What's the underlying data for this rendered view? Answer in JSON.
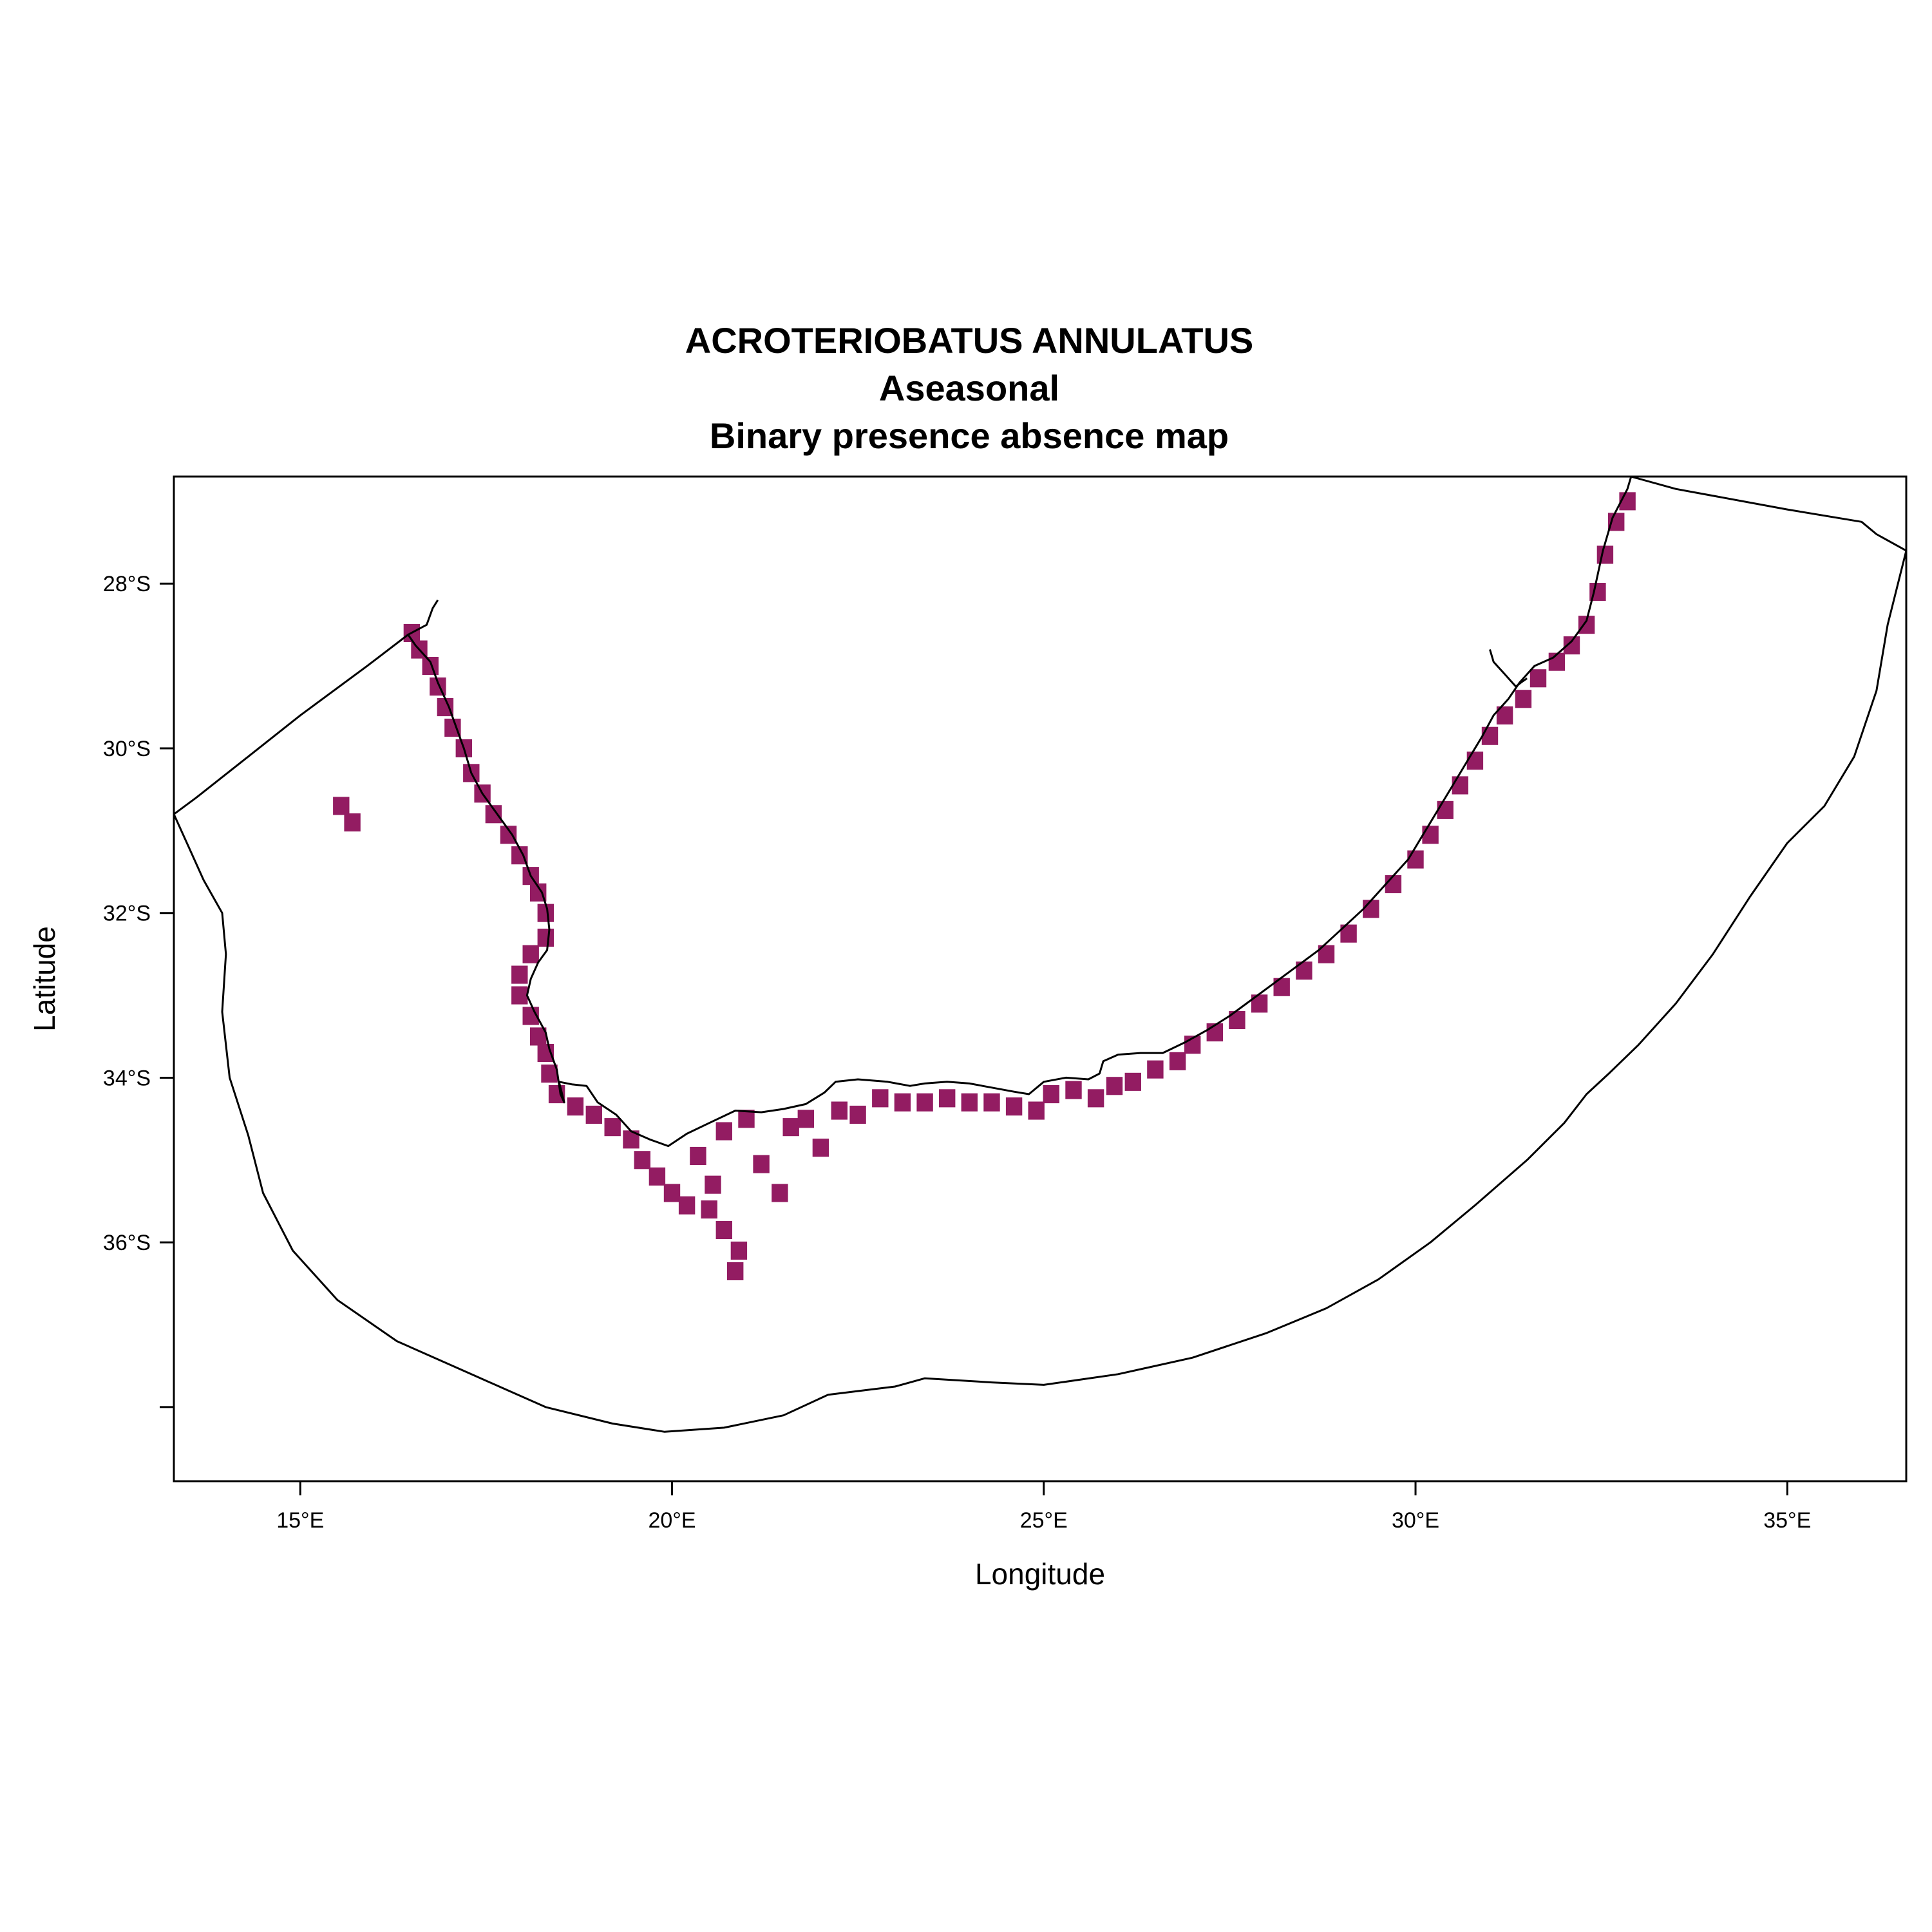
{
  "map": {
    "title_lines": [
      "ACROTERIOBATUS ANNULATUS",
      "Aseasonal",
      "Binary presence absence map"
    ],
    "xlabel": "Longitude",
    "ylabel": "Latitude",
    "x_range": [
      13.3,
      36.6
    ],
    "y_range": [
      -38.9,
      -26.7
    ],
    "x_ticks": [
      {
        "value": 15,
        "label": "15°E"
      },
      {
        "value": 20,
        "label": "20°E"
      },
      {
        "value": 25,
        "label": "25°E"
      },
      {
        "value": 30,
        "label": "30°E"
      },
      {
        "value": 35,
        "label": "35°E"
      }
    ],
    "y_ticks": [
      {
        "value": -28,
        "label": "28°S"
      },
      {
        "value": -30,
        "label": "30°S"
      },
      {
        "value": -32,
        "label": "32°S"
      },
      {
        "value": -34,
        "label": "34°S"
      },
      {
        "value": -36,
        "label": "36°S"
      },
      {
        "value": -38,
        "label": ""
      }
    ],
    "presence_color": "#931c62",
    "line_color": "#000000",
    "coastline": [
      [
        16.85,
        -28.2
      ],
      [
        16.78,
        -28.3
      ],
      [
        16.7,
        -28.5
      ],
      [
        16.45,
        -28.62
      ],
      [
        16.55,
        -28.75
      ],
      [
        16.75,
        -28.95
      ],
      [
        16.85,
        -29.2
      ],
      [
        17.0,
        -29.5
      ],
      [
        17.1,
        -29.75
      ],
      [
        17.2,
        -30.0
      ],
      [
        17.3,
        -30.3
      ],
      [
        17.45,
        -30.55
      ],
      [
        17.65,
        -30.8
      ],
      [
        17.85,
        -31.05
      ],
      [
        18.0,
        -31.3
      ],
      [
        18.1,
        -31.55
      ],
      [
        18.25,
        -31.75
      ],
      [
        18.32,
        -31.95
      ],
      [
        18.35,
        -32.2
      ],
      [
        18.32,
        -32.45
      ],
      [
        18.2,
        -32.6
      ],
      [
        18.1,
        -32.8
      ],
      [
        18.05,
        -33.0
      ],
      [
        18.15,
        -33.2
      ],
      [
        18.3,
        -33.45
      ],
      [
        18.35,
        -33.65
      ],
      [
        18.45,
        -33.9
      ],
      [
        18.5,
        -34.2
      ],
      [
        18.55,
        -34.3
      ],
      [
        18.48,
        -34.05
      ],
      [
        18.65,
        -34.08
      ],
      [
        18.85,
        -34.1
      ],
      [
        19.0,
        -34.3
      ],
      [
        19.25,
        -34.45
      ],
      [
        19.45,
        -34.65
      ],
      [
        19.7,
        -34.75
      ],
      [
        19.95,
        -34.83
      ],
      [
        20.2,
        -34.68
      ],
      [
        20.5,
        -34.55
      ],
      [
        20.85,
        -34.4
      ],
      [
        21.2,
        -34.42
      ],
      [
        21.5,
        -34.38
      ],
      [
        21.8,
        -34.32
      ],
      [
        22.05,
        -34.18
      ],
      [
        22.2,
        -34.05
      ],
      [
        22.5,
        -34.02
      ],
      [
        22.9,
        -34.05
      ],
      [
        23.2,
        -34.1
      ],
      [
        23.4,
        -34.07
      ],
      [
        23.7,
        -34.05
      ],
      [
        24.0,
        -34.07
      ],
      [
        24.3,
        -34.12
      ],
      [
        24.6,
        -34.17
      ],
      [
        24.8,
        -34.2
      ],
      [
        25.0,
        -34.05
      ],
      [
        25.3,
        -34.0
      ],
      [
        25.6,
        -34.02
      ],
      [
        25.75,
        -33.95
      ],
      [
        25.8,
        -33.8
      ],
      [
        26.0,
        -33.72
      ],
      [
        26.3,
        -33.7
      ],
      [
        26.6,
        -33.7
      ],
      [
        26.9,
        -33.57
      ],
      [
        27.2,
        -33.42
      ],
      [
        27.5,
        -33.25
      ],
      [
        27.8,
        -33.05
      ],
      [
        28.1,
        -32.85
      ],
      [
        28.4,
        -32.65
      ],
      [
        28.7,
        -32.45
      ],
      [
        29.0,
        -32.2
      ],
      [
        29.3,
        -31.95
      ],
      [
        29.6,
        -31.65
      ],
      [
        29.9,
        -31.35
      ],
      [
        30.1,
        -31.05
      ],
      [
        30.3,
        -30.75
      ],
      [
        30.5,
        -30.45
      ],
      [
        30.7,
        -30.15
      ],
      [
        30.9,
        -29.85
      ],
      [
        31.05,
        -29.6
      ],
      [
        31.25,
        -29.4
      ],
      [
        31.4,
        -29.2
      ],
      [
        31.6,
        -29.0
      ],
      [
        31.85,
        -28.9
      ],
      [
        32.1,
        -28.7
      ],
      [
        32.3,
        -28.45
      ],
      [
        32.4,
        -28.1
      ],
      [
        32.52,
        -27.6
      ],
      [
        32.65,
        -27.2
      ],
      [
        32.85,
        -26.85
      ],
      [
        32.9,
        -26.7
      ]
    ],
    "bay_inlet": [
      [
        31.0,
        -28.8
      ],
      [
        31.05,
        -28.95
      ],
      [
        31.15,
        -29.05
      ],
      [
        31.2,
        -29.1
      ],
      [
        31.25,
        -29.15
      ],
      [
        31.3,
        -29.2
      ],
      [
        31.35,
        -29.25
      ],
      [
        31.42,
        -29.2
      ],
      [
        31.5,
        -29.15
      ]
    ],
    "eez_boundary": [
      [
        16.45,
        -28.62
      ],
      [
        15.9,
        -29.0
      ],
      [
        15.0,
        -29.6
      ],
      [
        14.3,
        -30.1
      ],
      [
        13.6,
        -30.6
      ],
      [
        13.3,
        -30.8
      ],
      [
        13.5,
        -31.2
      ],
      [
        13.7,
        -31.6
      ],
      [
        13.95,
        -32.0
      ],
      [
        14.0,
        -32.5
      ],
      [
        13.95,
        -33.2
      ],
      [
        14.05,
        -34.0
      ],
      [
        14.3,
        -34.7
      ],
      [
        14.5,
        -35.4
      ],
      [
        14.9,
        -36.1
      ],
      [
        15.5,
        -36.7
      ],
      [
        16.3,
        -37.2
      ],
      [
        17.3,
        -37.6
      ],
      [
        18.3,
        -38.0
      ],
      [
        19.2,
        -38.2
      ],
      [
        19.9,
        -38.3
      ],
      [
        20.7,
        -38.25
      ],
      [
        21.5,
        -38.1
      ],
      [
        22.1,
        -37.85
      ],
      [
        23.0,
        -37.75
      ],
      [
        23.4,
        -37.65
      ],
      [
        24.3,
        -37.7
      ],
      [
        25.0,
        -37.73
      ],
      [
        26.0,
        -37.6
      ],
      [
        27.0,
        -37.4
      ],
      [
        28.0,
        -37.1
      ],
      [
        28.8,
        -36.8
      ],
      [
        29.5,
        -36.45
      ],
      [
        30.2,
        -36.0
      ],
      [
        30.8,
        -35.55
      ],
      [
        31.5,
        -35.0
      ],
      [
        32.0,
        -34.55
      ],
      [
        32.3,
        -34.2
      ],
      [
        32.6,
        -33.95
      ],
      [
        33.0,
        -33.6
      ],
      [
        33.5,
        -33.1
      ],
      [
        34.0,
        -32.5
      ],
      [
        34.5,
        -31.8
      ],
      [
        35.0,
        -31.15
      ],
      [
        35.5,
        -30.7
      ],
      [
        35.9,
        -30.1
      ],
      [
        36.2,
        -29.3
      ],
      [
        36.35,
        -28.5
      ],
      [
        36.6,
        -27.6
      ],
      [
        36.2,
        -27.4
      ],
      [
        36.0,
        -27.25
      ],
      [
        35.0,
        -27.1
      ],
      [
        33.5,
        -26.85
      ],
      [
        32.9,
        -26.7
      ]
    ],
    "presence_cells": [
      [
        16.5,
        -28.6
      ],
      [
        16.6,
        -28.8
      ],
      [
        16.75,
        -29.0
      ],
      [
        16.85,
        -29.25
      ],
      [
        16.95,
        -29.5
      ],
      [
        17.05,
        -29.75
      ],
      [
        17.2,
        -30.0
      ],
      [
        17.3,
        -30.3
      ],
      [
        17.45,
        -30.55
      ],
      [
        17.6,
        -30.8
      ],
      [
        17.8,
        -31.05
      ],
      [
        17.95,
        -31.3
      ],
      [
        18.1,
        -31.55
      ],
      [
        18.2,
        -31.75
      ],
      [
        18.3,
        -32.0
      ],
      [
        18.3,
        -32.3
      ],
      [
        18.1,
        -32.5
      ],
      [
        17.95,
        -32.75
      ],
      [
        17.95,
        -33.0
      ],
      [
        18.1,
        -33.25
      ],
      [
        18.2,
        -33.5
      ],
      [
        18.3,
        -33.7
      ],
      [
        18.35,
        -33.95
      ],
      [
        18.45,
        -34.2
      ],
      [
        18.7,
        -34.35
      ],
      [
        18.95,
        -34.45
      ],
      [
        19.2,
        -34.6
      ],
      [
        19.45,
        -34.75
      ],
      [
        19.6,
        -35.0
      ],
      [
        19.8,
        -35.2
      ],
      [
        20.0,
        -35.4
      ],
      [
        20.2,
        -35.55
      ],
      [
        20.5,
        -35.6
      ],
      [
        20.7,
        -35.85
      ],
      [
        20.9,
        -36.1
      ],
      [
        20.85,
        -36.35
      ],
      [
        20.55,
        -35.3
      ],
      [
        20.35,
        -34.95
      ],
      [
        20.7,
        -34.65
      ],
      [
        21.0,
        -34.5
      ],
      [
        21.2,
        -35.05
      ],
      [
        21.45,
        -35.4
      ],
      [
        21.6,
        -34.6
      ],
      [
        21.8,
        -34.5
      ],
      [
        22.0,
        -34.85
      ],
      [
        22.25,
        -34.4
      ],
      [
        22.5,
        -34.45
      ],
      [
        22.8,
        -34.25
      ],
      [
        23.1,
        -34.3
      ],
      [
        23.4,
        -34.3
      ],
      [
        23.7,
        -34.25
      ],
      [
        24.0,
        -34.3
      ],
      [
        24.3,
        -34.3
      ],
      [
        24.6,
        -34.35
      ],
      [
        24.9,
        -34.4
      ],
      [
        25.1,
        -34.2
      ],
      [
        25.4,
        -34.15
      ],
      [
        25.7,
        -34.25
      ],
      [
        25.95,
        -34.1
      ],
      [
        26.2,
        -34.05
      ],
      [
        26.5,
        -33.9
      ],
      [
        26.8,
        -33.8
      ],
      [
        27.0,
        -33.6
      ],
      [
        27.3,
        -33.45
      ],
      [
        27.6,
        -33.3
      ],
      [
        27.9,
        -33.1
      ],
      [
        28.2,
        -32.9
      ],
      [
        28.5,
        -32.7
      ],
      [
        28.8,
        -32.5
      ],
      [
        29.1,
        -32.25
      ],
      [
        29.4,
        -31.95
      ],
      [
        29.7,
        -31.65
      ],
      [
        30.0,
        -31.35
      ],
      [
        30.2,
        -31.05
      ],
      [
        30.4,
        -30.75
      ],
      [
        30.6,
        -30.45
      ],
      [
        30.8,
        -30.15
      ],
      [
        31.0,
        -29.85
      ],
      [
        31.2,
        -29.6
      ],
      [
        31.45,
        -29.4
      ],
      [
        31.65,
        -29.15
      ],
      [
        31.9,
        -28.95
      ],
      [
        32.1,
        -28.75
      ],
      [
        32.3,
        -28.5
      ],
      [
        32.45,
        -28.1
      ],
      [
        32.55,
        -27.65
      ],
      [
        32.7,
        -27.25
      ],
      [
        32.85,
        -27.0
      ],
      [
        15.55,
        -30.7
      ],
      [
        15.7,
        -30.9
      ]
    ]
  }
}
